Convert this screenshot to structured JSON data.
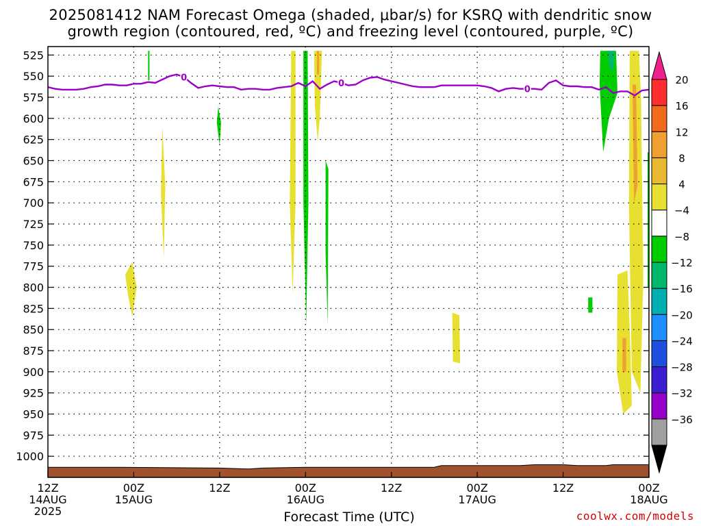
{
  "header": {
    "title_line1": "2025081412 NAM Forecast Omega (shaded, μbar/s) for KSRQ with dendritic snow",
    "title_line2": "growth region (contoured, red, ºC) and freezing level (contoured, purple, ºC)"
  },
  "footer": {
    "credit": "coolwx.com/models"
  },
  "chart_data": {
    "type": "heatmap",
    "title": "2025081412 NAM Forecast Omega (shaded, μbar/s) for KSRQ with dendritic snow growth region (contoured, red, ºC) and freezing level (contoured, purple, ºC)",
    "xlabel": "Forecast Time (UTC)",
    "ylabel": "",
    "x_unit": "hours after 2025-08-14 12Z",
    "xlim": [
      0,
      84
    ],
    "ylim_hpa": [
      1025,
      515
    ],
    "x_ticks": [
      {
        "hour": 0,
        "lines": [
          "12Z",
          "14AUG",
          "2025"
        ]
      },
      {
        "hour": 12,
        "lines": [
          "00Z",
          "15AUG"
        ]
      },
      {
        "hour": 24,
        "lines": [
          "12Z"
        ]
      },
      {
        "hour": 36,
        "lines": [
          "00Z",
          "16AUG"
        ]
      },
      {
        "hour": 48,
        "lines": [
          "12Z"
        ]
      },
      {
        "hour": 60,
        "lines": [
          "00Z",
          "17AUG"
        ]
      },
      {
        "hour": 72,
        "lines": [
          "12Z"
        ]
      },
      {
        "hour": 84,
        "lines": [
          "00Z",
          "18AUG"
        ]
      }
    ],
    "y_ticks": [
      525,
      550,
      575,
      600,
      625,
      650,
      675,
      700,
      725,
      750,
      775,
      800,
      825,
      850,
      875,
      900,
      925,
      950,
      975,
      1000
    ],
    "grid": true,
    "colorbar": {
      "levels": [
        "20",
        "16",
        "12",
        "8",
        "4",
        "−4",
        "−8",
        "−12",
        "−16",
        "−20",
        "−24",
        "−28",
        "−32",
        "−36"
      ],
      "colors": [
        "#ff2e2e",
        "#f26b1d",
        "#f0a030",
        "#e8b830",
        "#e8e030",
        "#ffffff",
        "#00cc00",
        "#00b86b",
        "#00b0b0",
        "#1e8fff",
        "#1e50e0",
        "#3c1ed2",
        "#9600c8",
        "#a0a0a0"
      ],
      "top_arrow_color": "#f0208c",
      "bottom_arrow_color": "#000000"
    },
    "freezing_level": {
      "label": "0",
      "color": "#9a00c8",
      "points": [
        [
          0,
          563
        ],
        [
          1,
          565
        ],
        [
          2,
          566
        ],
        [
          3,
          566
        ],
        [
          4,
          566
        ],
        [
          5,
          565
        ],
        [
          6,
          563
        ],
        [
          7,
          562
        ],
        [
          8,
          560
        ],
        [
          9,
          560
        ],
        [
          10,
          561
        ],
        [
          11,
          561
        ],
        [
          12,
          559
        ],
        [
          13,
          559
        ],
        [
          14,
          557
        ],
        [
          15,
          558
        ],
        [
          16,
          554
        ],
        [
          17,
          550
        ],
        [
          18,
          548
        ],
        [
          19,
          551
        ],
        [
          20,
          558
        ],
        [
          21,
          564
        ],
        [
          22,
          562
        ],
        [
          23,
          561
        ],
        [
          24,
          562
        ],
        [
          25,
          563
        ],
        [
          26,
          563
        ],
        [
          27,
          566
        ],
        [
          28,
          565
        ],
        [
          29,
          565
        ],
        [
          30,
          566
        ],
        [
          31,
          566
        ],
        [
          32,
          564
        ],
        [
          33,
          563
        ],
        [
          34,
          562
        ],
        [
          35,
          558
        ],
        [
          36,
          562
        ],
        [
          37,
          556
        ],
        [
          38,
          565
        ],
        [
          39,
          560
        ],
        [
          40,
          556
        ],
        [
          41,
          558
        ],
        [
          42,
          561
        ],
        [
          43,
          560
        ],
        [
          44,
          555
        ],
        [
          45,
          552
        ],
        [
          46,
          551
        ],
        [
          47,
          554
        ],
        [
          48,
          556
        ],
        [
          49,
          558
        ],
        [
          50,
          560
        ],
        [
          51,
          562
        ],
        [
          52,
          563
        ],
        [
          53,
          563
        ],
        [
          54,
          563
        ],
        [
          55,
          561
        ],
        [
          56,
          561
        ],
        [
          57,
          561
        ],
        [
          58,
          561
        ],
        [
          59,
          561
        ],
        [
          60,
          561
        ],
        [
          61,
          562
        ],
        [
          62,
          564
        ],
        [
          63,
          568
        ],
        [
          64,
          565
        ],
        [
          65,
          564
        ],
        [
          66,
          565
        ],
        [
          67,
          565
        ],
        [
          68,
          565
        ],
        [
          69,
          566
        ],
        [
          70,
          558
        ],
        [
          71,
          555
        ],
        [
          72,
          561
        ],
        [
          73,
          562
        ],
        [
          74,
          562
        ],
        [
          75,
          563
        ],
        [
          76,
          563
        ],
        [
          77,
          566
        ],
        [
          78,
          563
        ],
        [
          79,
          570
        ],
        [
          80,
          568
        ],
        [
          81,
          568
        ],
        [
          82,
          573
        ],
        [
          83,
          567
        ],
        [
          84,
          566
        ]
      ]
    },
    "omega_regions": [
      {
        "name": "-4 to -8",
        "color": "#00cc00",
        "shape": [
          [
            14.2,
            520
          ],
          [
            14.2,
            555
          ],
          [
            14.0,
            555
          ],
          [
            14.0,
            520
          ]
        ]
      },
      {
        "name": "-4 to -8",
        "color": "#00cc00",
        "shape": [
          [
            23.8,
            586
          ],
          [
            24.2,
            605
          ],
          [
            24.0,
            632
          ],
          [
            23.6,
            605
          ]
        ]
      },
      {
        "name": "4 to 8",
        "color": "#e8e030",
        "shape": [
          [
            16.0,
            610
          ],
          [
            16.4,
            680
          ],
          [
            16.2,
            765
          ],
          [
            15.8,
            690
          ]
        ]
      },
      {
        "name": "4 to 8",
        "color": "#e8e030",
        "shape": [
          [
            10.8,
            785
          ],
          [
            11.8,
            770
          ],
          [
            12.4,
            800
          ],
          [
            11.8,
            835
          ],
          [
            11.2,
            810
          ]
        ]
      },
      {
        "name": "4 to 8",
        "color": "#e8e030",
        "shape": [
          [
            34.0,
            520
          ],
          [
            34.6,
            520
          ],
          [
            34.6,
            700
          ],
          [
            34.2,
            808
          ],
          [
            33.8,
            700
          ]
        ]
      },
      {
        "name": "-4 to -8",
        "color": "#00cc00",
        "shape": [
          [
            35.7,
            520
          ],
          [
            36.3,
            520
          ],
          [
            36.4,
            700
          ],
          [
            36.1,
            845
          ],
          [
            35.7,
            700
          ]
        ]
      },
      {
        "name": "4 to 8",
        "color": "#e8e030",
        "shape": [
          [
            37.2,
            520
          ],
          [
            38.3,
            520
          ],
          [
            38.0,
            600
          ],
          [
            37.7,
            627
          ],
          [
            37.3,
            585
          ]
        ]
      },
      {
        "name": "8 to 12",
        "color": "#f0a030",
        "shape": [
          [
            37.6,
            520
          ],
          [
            37.9,
            520
          ],
          [
            37.9,
            548
          ],
          [
            37.6,
            548
          ]
        ]
      },
      {
        "name": "-4 to -8",
        "color": "#00cc00",
        "shape": [
          [
            38.8,
            650
          ],
          [
            39.2,
            660
          ],
          [
            39.1,
            845
          ],
          [
            38.8,
            760
          ]
        ]
      },
      {
        "name": "4 to 8",
        "color": "#e8e030",
        "shape": [
          [
            56.5,
            830
          ],
          [
            57.5,
            833
          ],
          [
            57.6,
            890
          ],
          [
            56.6,
            888
          ]
        ]
      },
      {
        "name": "-4 to -8",
        "color": "#00cc00",
        "shape": [
          [
            75.5,
            812
          ],
          [
            76.1,
            812
          ],
          [
            76.1,
            830
          ],
          [
            75.5,
            830
          ]
        ]
      },
      {
        "name": "-4 to -8",
        "color": "#00cc00",
        "shape": [
          [
            77.2,
            520
          ],
          [
            79.4,
            520
          ],
          [
            79.6,
            570
          ],
          [
            78.4,
            600
          ],
          [
            77.6,
            640
          ],
          [
            77.1,
            560
          ]
        ]
      },
      {
        "name": "-8 to -12",
        "color": "#00b86b",
        "shape": [
          [
            78.2,
            520
          ],
          [
            79.2,
            520
          ],
          [
            79.0,
            545
          ],
          [
            78.5,
            540
          ]
        ]
      },
      {
        "name": "4 to 8",
        "color": "#e8e030",
        "shape": [
          [
            79.6,
            785
          ],
          [
            81.0,
            780
          ],
          [
            81.4,
            870
          ],
          [
            81.6,
            940
          ],
          [
            80.4,
            950
          ],
          [
            79.5,
            900
          ]
        ]
      },
      {
        "name": "8 to 12",
        "color": "#f0a030",
        "shape": [
          [
            80.3,
            860
          ],
          [
            80.8,
            860
          ],
          [
            80.8,
            900
          ],
          [
            80.3,
            900
          ]
        ]
      },
      {
        "name": "4 to 8",
        "color": "#e8e030",
        "shape": [
          [
            81.3,
            520
          ],
          [
            82.6,
            520
          ],
          [
            82.9,
            580
          ],
          [
            83.2,
            790
          ],
          [
            82.8,
            925
          ],
          [
            81.6,
            900
          ],
          [
            81.2,
            700
          ]
        ]
      },
      {
        "name": "8 to 12",
        "color": "#f0a030",
        "shape": [
          [
            81.7,
            560
          ],
          [
            82.2,
            560
          ],
          [
            82.4,
            680
          ],
          [
            81.9,
            700
          ]
        ]
      },
      {
        "name": "-4 to -8",
        "color": "#00cc00",
        "shape": [
          [
            83.8,
            640
          ],
          [
            84.0,
            640
          ],
          [
            84.0,
            800
          ],
          [
            83.8,
            800
          ]
        ]
      }
    ],
    "terrain": {
      "color": "#a0522d",
      "surface_hpa": [
        [
          0,
          1013
        ],
        [
          10,
          1013
        ],
        [
          24,
          1014
        ],
        [
          28,
          1015
        ],
        [
          30,
          1014
        ],
        [
          36,
          1013
        ],
        [
          54,
          1013
        ],
        [
          55,
          1011
        ],
        [
          66,
          1011
        ],
        [
          68,
          1010
        ],
        [
          72,
          1010
        ],
        [
          74,
          1011
        ],
        [
          78,
          1011
        ],
        [
          79,
          1010
        ],
        [
          84,
          1010
        ]
      ]
    }
  }
}
